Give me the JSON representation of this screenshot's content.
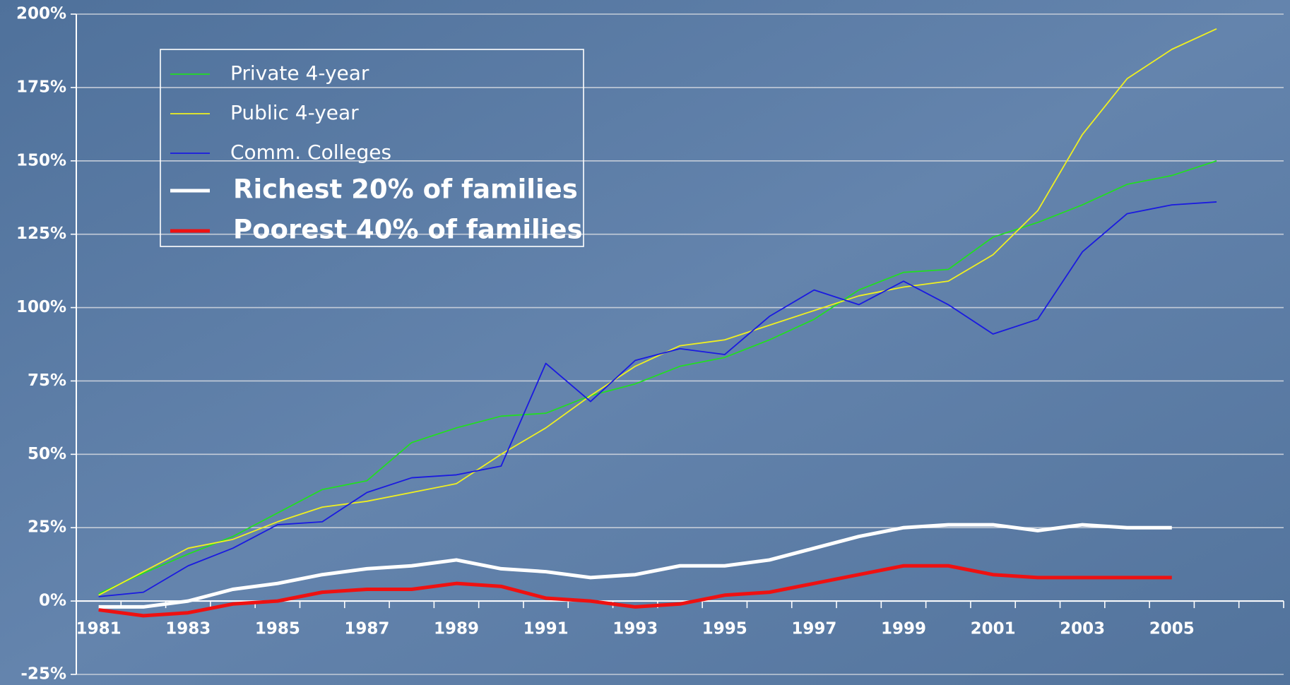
{
  "chart_data": {
    "type": "line",
    "categories": [
      "1981",
      null,
      "1983",
      null,
      "1985",
      null,
      "1987",
      null,
      "1989",
      null,
      "1991",
      null,
      "1993",
      null,
      "1995",
      null,
      "1997",
      null,
      "1999",
      null,
      "2001",
      null,
      "2003",
      null,
      "2005",
      null,
      null
    ],
    "series": [
      {
        "name": "Private 4-year",
        "color": "#22dd22",
        "line_width": 1.8,
        "values": [
          2.5,
          9.5,
          16,
          22,
          30,
          38,
          41,
          54,
          59,
          63,
          64,
          70,
          74,
          80,
          83,
          89,
          96,
          106,
          112,
          113,
          124,
          129,
          135,
          142,
          145,
          150,
          null
        ]
      },
      {
        "name": "Public 4-year",
        "color": "#f0f020",
        "line_width": 1.8,
        "values": [
          2,
          10,
          18,
          21,
          27,
          32,
          34,
          37,
          40,
          50,
          59,
          70,
          80,
          87,
          89,
          94,
          99,
          104,
          107,
          109,
          118,
          133,
          159,
          178,
          188,
          195,
          null
        ]
      },
      {
        "name": "Comm. Colleges",
        "color": "#1a1ae0",
        "line_width": 1.8,
        "values": [
          1.5,
          3,
          12,
          18,
          26,
          27,
          37,
          42,
          43,
          46,
          81,
          68,
          82,
          86,
          84,
          97,
          106,
          101,
          109,
          101,
          91,
          96,
          119,
          132,
          135,
          136,
          null
        ]
      },
      {
        "name": "Richest 20% of families",
        "color": "#ffffff",
        "line_width": 5,
        "values": [
          -2,
          -2,
          0,
          4,
          6,
          9,
          11,
          12,
          14,
          11,
          10,
          8,
          9,
          12,
          12,
          14,
          18,
          22,
          25,
          26,
          26,
          24,
          26,
          25,
          25,
          null,
          null
        ]
      },
      {
        "name": "Poorest 40% of families",
        "color": "#ee1111",
        "line_width": 5,
        "values": [
          -3,
          -5,
          -4,
          -1,
          0,
          3,
          4,
          4,
          6,
          5,
          1,
          0,
          -2,
          -1,
          2,
          3,
          6,
          9,
          12,
          12,
          9,
          8,
          8,
          8,
          8,
          null,
          null
        ]
      }
    ],
    "ylim": [
      -25,
      200
    ],
    "yticks": [
      {
        "value": -25,
        "label": "-25%"
      },
      {
        "value": 0,
        "label": "0%"
      },
      {
        "value": 25,
        "label": "25%"
      },
      {
        "value": 50,
        "label": "50%"
      },
      {
        "value": 75,
        "label": "75%"
      },
      {
        "value": 100,
        "label": "100%"
      },
      {
        "value": 125,
        "label": "125%"
      },
      {
        "value": 150,
        "label": "150%"
      },
      {
        "value": 175,
        "label": "175%"
      },
      {
        "value": 200,
        "label": "200%"
      }
    ],
    "grid": true,
    "legend": "upper-left"
  }
}
